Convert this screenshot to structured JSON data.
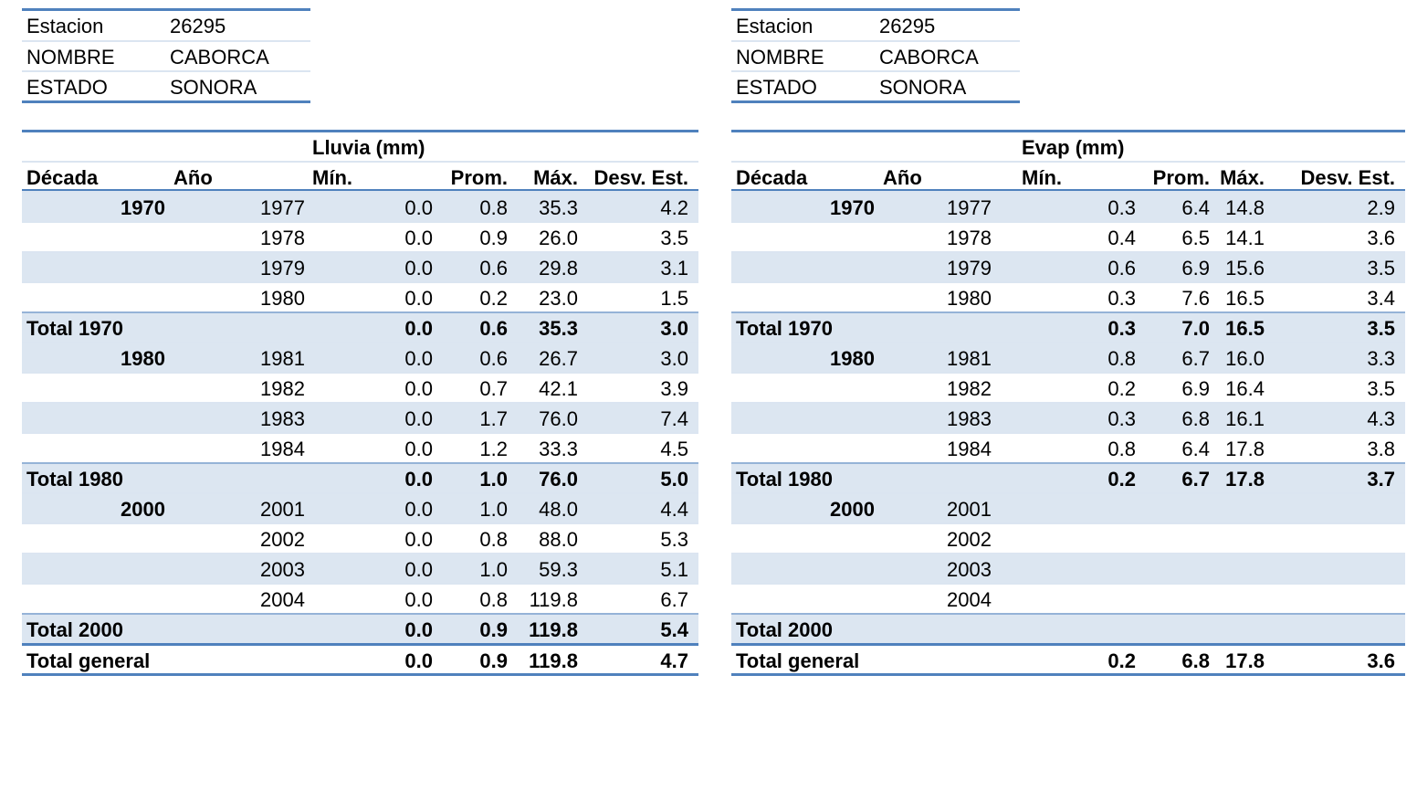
{
  "panels": [
    {
      "info": [
        {
          "label": "Estacion",
          "value": "26295"
        },
        {
          "label": "NOMBRE",
          "value": "CABORCA"
        },
        {
          "label": "ESTADO",
          "value": "SONORA"
        }
      ],
      "title": "Lluvia (mm)",
      "headers": {
        "decada": "Década",
        "anio": "Año",
        "min": "Mín.",
        "prom": "Prom.",
        "max": "Máx.",
        "desv": "Desv. Est."
      },
      "rows": [
        {
          "decada": "1970",
          "anio": "1977",
          "min": "0.0",
          "prom": "0.8",
          "max": "35.3",
          "desv": "4.2"
        },
        {
          "decada": "",
          "anio": "1978",
          "min": "0.0",
          "prom": "0.9",
          "max": "26.0",
          "desv": "3.5"
        },
        {
          "decada": "",
          "anio": "1979",
          "min": "0.0",
          "prom": "0.6",
          "max": "29.8",
          "desv": "3.1"
        },
        {
          "decada": "",
          "anio": "1980",
          "min": "0.0",
          "prom": "0.2",
          "max": "23.0",
          "desv": "1.5"
        },
        {
          "total": "Total 1970",
          "min": "0.0",
          "prom": "0.6",
          "max": "35.3",
          "desv": "3.0"
        },
        {
          "decada": "1980",
          "anio": "1981",
          "min": "0.0",
          "prom": "0.6",
          "max": "26.7",
          "desv": "3.0"
        },
        {
          "decada": "",
          "anio": "1982",
          "min": "0.0",
          "prom": "0.7",
          "max": "42.1",
          "desv": "3.9"
        },
        {
          "decada": "",
          "anio": "1983",
          "min": "0.0",
          "prom": "1.7",
          "max": "76.0",
          "desv": "7.4"
        },
        {
          "decada": "",
          "anio": "1984",
          "min": "0.0",
          "prom": "1.2",
          "max": "33.3",
          "desv": "4.5"
        },
        {
          "total": "Total 1980",
          "min": "0.0",
          "prom": "1.0",
          "max": "76.0",
          "desv": "5.0"
        },
        {
          "decada": "2000",
          "anio": "2001",
          "min": "0.0",
          "prom": "1.0",
          "max": "48.0",
          "desv": "4.4"
        },
        {
          "decada": "",
          "anio": "2002",
          "min": "0.0",
          "prom": "0.8",
          "max": "88.0",
          "desv": "5.3"
        },
        {
          "decada": "",
          "anio": "2003",
          "min": "0.0",
          "prom": "1.0",
          "max": "59.3",
          "desv": "5.1"
        },
        {
          "decada": "",
          "anio": "2004",
          "min": "0.0",
          "prom": "0.8",
          "max": "119.8",
          "desv": "6.7"
        },
        {
          "total": "Total 2000",
          "min": "0.0",
          "prom": "0.9",
          "max": "119.8",
          "desv": "5.4"
        },
        {
          "grand": "Total general",
          "min": "0.0",
          "prom": "0.9",
          "max": "119.8",
          "desv": "4.7"
        }
      ]
    },
    {
      "info": [
        {
          "label": "Estacion",
          "value": "26295"
        },
        {
          "label": "NOMBRE",
          "value": "CABORCA"
        },
        {
          "label": "ESTADO",
          "value": "SONORA"
        }
      ],
      "title": "Evap  (mm)",
      "headers": {
        "decada": "Década",
        "anio": "Año",
        "min": "Mín.",
        "prom": "Prom.",
        "max": "Máx.",
        "desv": "Desv. Est."
      },
      "rows": [
        {
          "decada": "1970",
          "anio": "1977",
          "min": "0.3",
          "prom": "6.4",
          "max": "14.8",
          "desv": "2.9"
        },
        {
          "decada": "",
          "anio": "1978",
          "min": "0.4",
          "prom": "6.5",
          "max": "14.1",
          "desv": "3.6"
        },
        {
          "decada": "",
          "anio": "1979",
          "min": "0.6",
          "prom": "6.9",
          "max": "15.6",
          "desv": "3.5"
        },
        {
          "decada": "",
          "anio": "1980",
          "min": "0.3",
          "prom": "7.6",
          "max": "16.5",
          "desv": "3.4"
        },
        {
          "total": "Total 1970",
          "min": "0.3",
          "prom": "7.0",
          "max": "16.5",
          "desv": "3.5"
        },
        {
          "decada": "1980",
          "anio": "1981",
          "min": "0.8",
          "prom": "6.7",
          "max": "16.0",
          "desv": "3.3"
        },
        {
          "decada": "",
          "anio": "1982",
          "min": "0.2",
          "prom": "6.9",
          "max": "16.4",
          "desv": "3.5"
        },
        {
          "decada": "",
          "anio": "1983",
          "min": "0.3",
          "prom": "6.8",
          "max": "16.1",
          "desv": "4.3"
        },
        {
          "decada": "",
          "anio": "1984",
          "min": "0.8",
          "prom": "6.4",
          "max": "17.8",
          "desv": "3.8"
        },
        {
          "total": "Total 1980",
          "min": "0.2",
          "prom": "6.7",
          "max": "17.8",
          "desv": "3.7"
        },
        {
          "decada": "2000",
          "anio": "2001",
          "min": "",
          "prom": "",
          "max": "",
          "desv": ""
        },
        {
          "decada": "",
          "anio": "2002",
          "min": "",
          "prom": "",
          "max": "",
          "desv": ""
        },
        {
          "decada": "",
          "anio": "2003",
          "min": "",
          "prom": "",
          "max": "",
          "desv": ""
        },
        {
          "decada": "",
          "anio": "2004",
          "min": "",
          "prom": "",
          "max": "",
          "desv": ""
        },
        {
          "total": "Total 2000",
          "min": "",
          "prom": "",
          "max": "",
          "desv": ""
        },
        {
          "grand": "Total general",
          "min": "0.2",
          "prom": "6.8",
          "max": "17.8",
          "desv": "3.6"
        }
      ]
    }
  ],
  "colors": {
    "accent": "#4f81bd",
    "band": "#dce6f1"
  }
}
